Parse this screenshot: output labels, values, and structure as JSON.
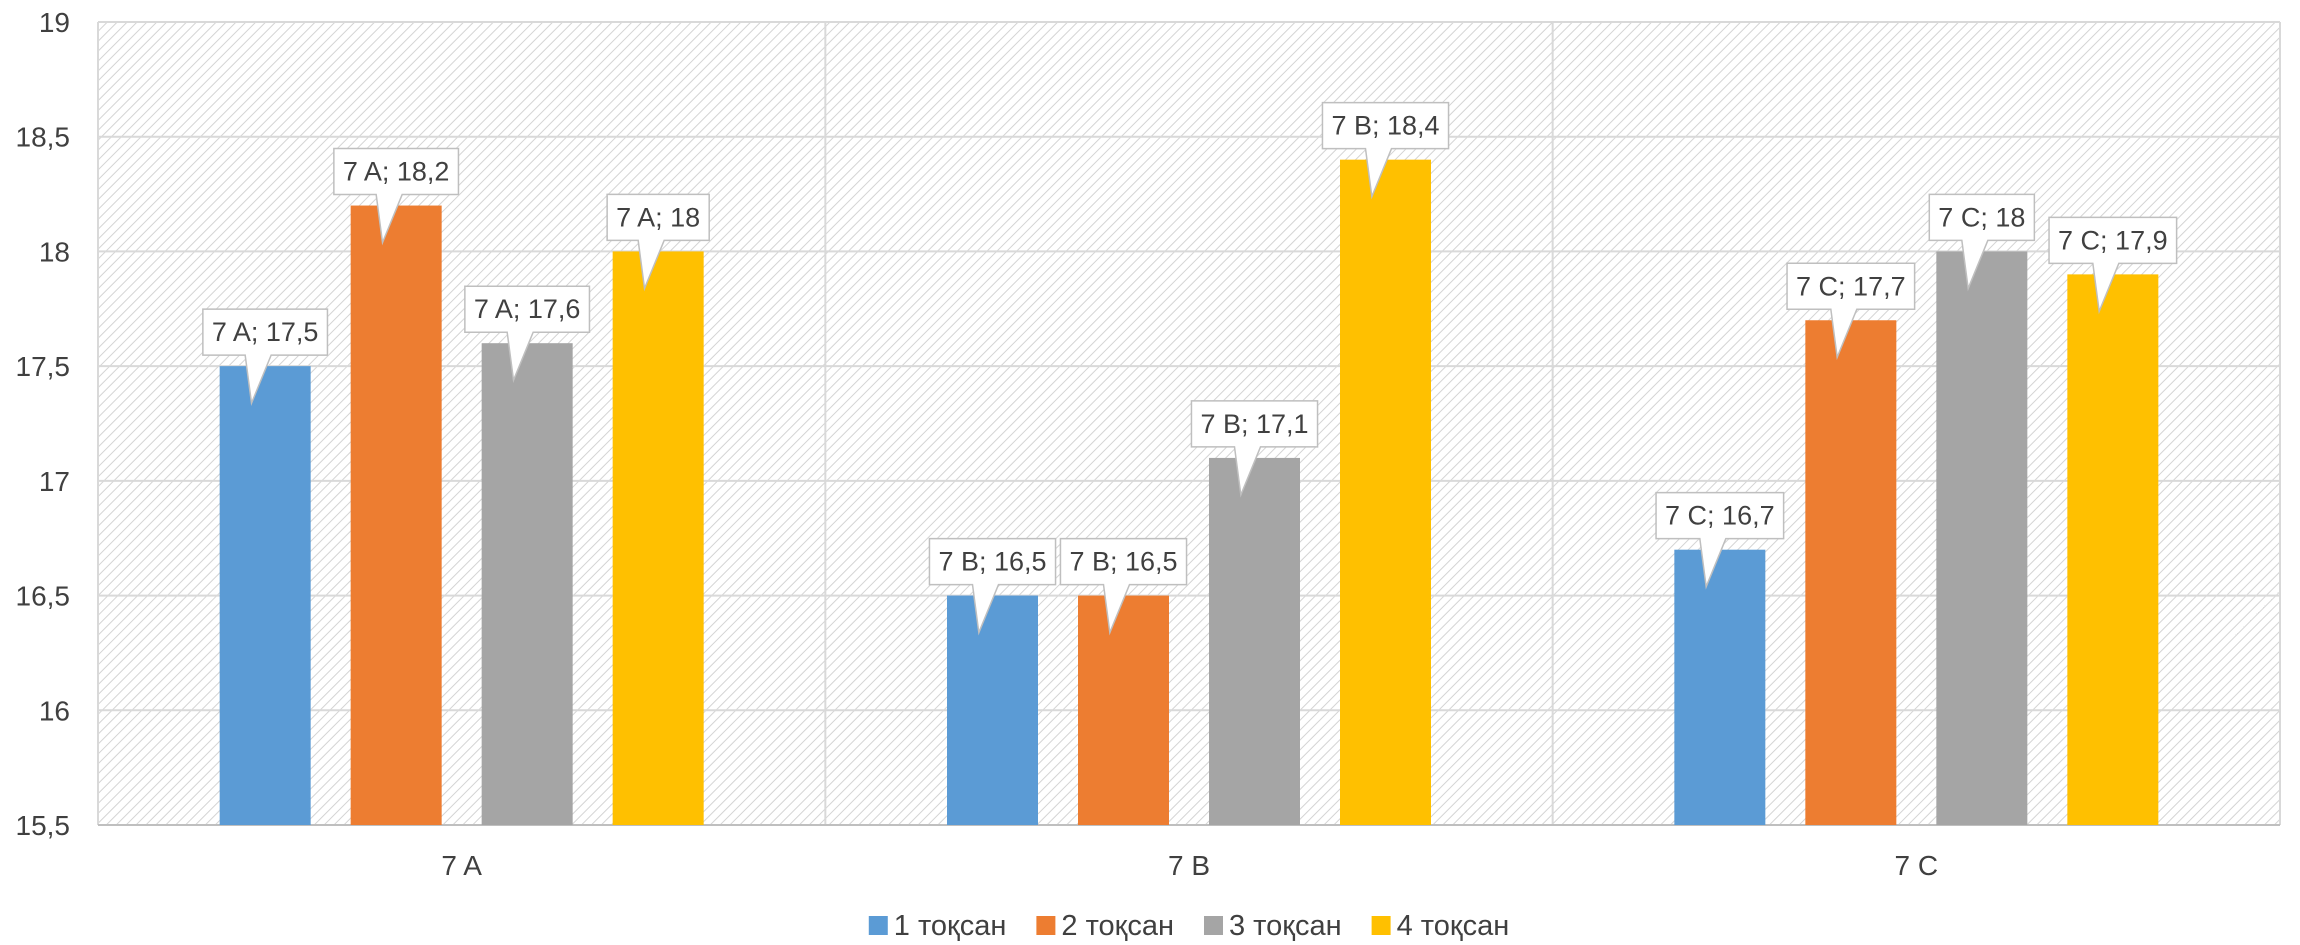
{
  "chart_data": {
    "type": "bar",
    "categories": [
      "7 A",
      "7 B",
      "7 C"
    ],
    "series": [
      {
        "name": "1 тоқсан",
        "color": "#5B9BD5",
        "values": [
          17.5,
          16.5,
          16.7
        ]
      },
      {
        "name": "2 тоқсан",
        "color": "#ED7D31",
        "values": [
          18.2,
          16.5,
          17.7
        ]
      },
      {
        "name": "3 тоқсан",
        "color": "#A5A5A5",
        "values": [
          17.6,
          17.1,
          18.0
        ]
      },
      {
        "name": "4 тоқсан",
        "color": "#FFC000",
        "values": [
          18.0,
          18.4,
          17.9
        ]
      }
    ],
    "data_labels": [
      [
        "7 A; 17,5",
        "7 B; 16,5",
        "7 C; 16,7"
      ],
      [
        "7 A; 18,2",
        "7 B; 16,5",
        "7 C; 17,7"
      ],
      [
        "7 A; 17,6",
        "7 B; 17,1",
        "7 C; 18"
      ],
      [
        "7 A; 18",
        "7 B; 18,4",
        "7 C; 17,9"
      ]
    ],
    "y_ticks": [
      "15,5",
      "16",
      "16,5",
      "17",
      "17,5",
      "18",
      "18,5",
      "19"
    ],
    "ylim": [
      15.5,
      19
    ],
    "grid": true,
    "legend_position": "bottom"
  }
}
